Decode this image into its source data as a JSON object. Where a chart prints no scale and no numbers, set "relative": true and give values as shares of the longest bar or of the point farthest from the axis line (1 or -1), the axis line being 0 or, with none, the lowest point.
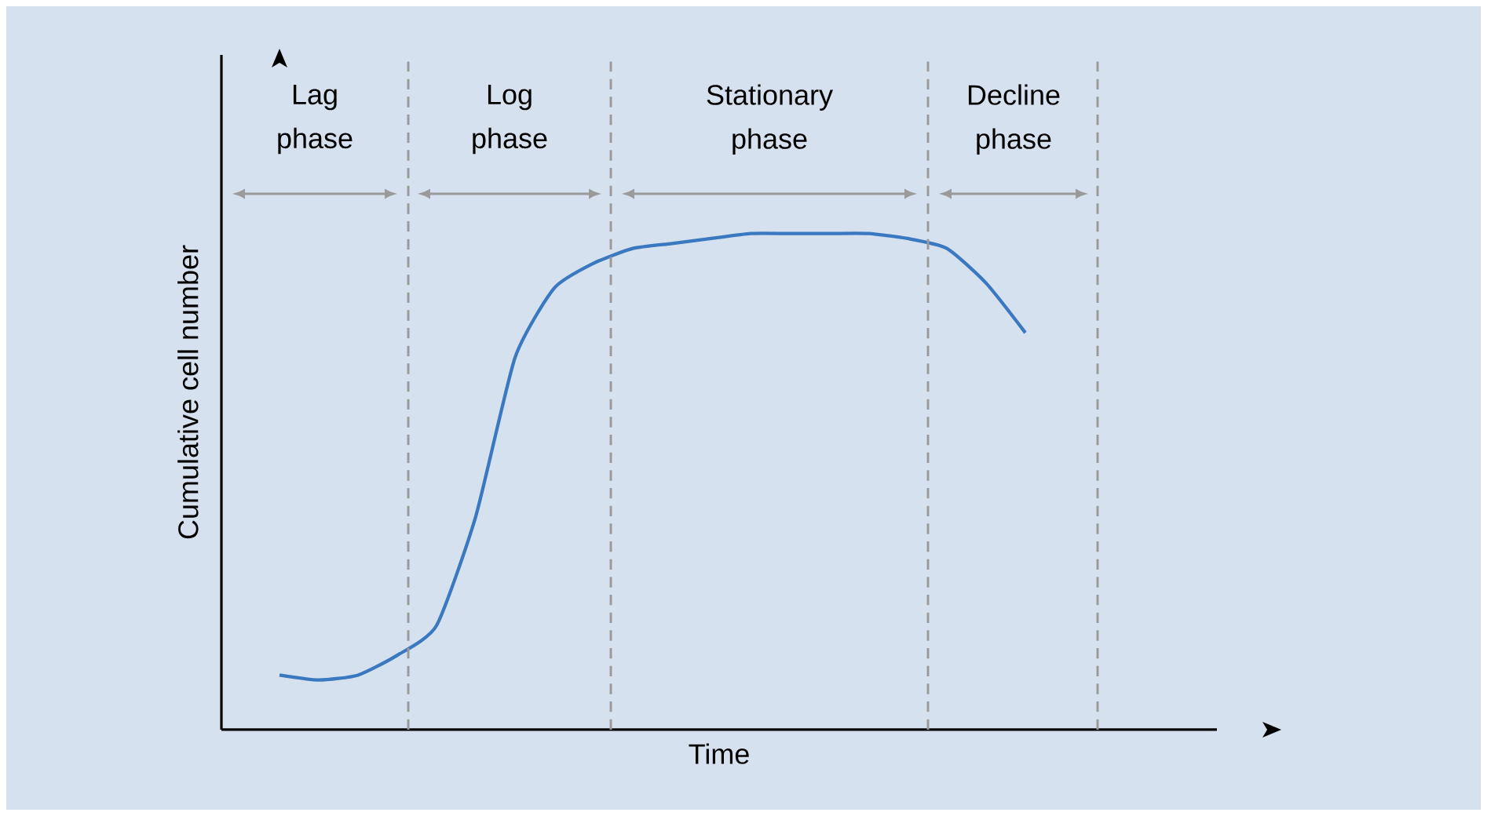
{
  "chart_data": {
    "type": "line",
    "relative": true,
    "xlabel": "Time",
    "ylabel": "Cumulative cell number",
    "categories": [
      null,
      null,
      null,
      null,
      null,
      null,
      null,
      null,
      null,
      null,
      null,
      null,
      null,
      null,
      null,
      null,
      null,
      null,
      null,
      null
    ],
    "series": [
      {
        "color": "#3a78c0",
        "values": [
          0.11,
          0.1,
          0.11,
          0.15,
          0.21,
          0.43,
          0.75,
          0.89,
          0.94,
          0.97,
          0.98,
          0.99,
          1.0,
          1.0,
          1.0,
          1.0,
          0.99,
          0.97,
          0.9,
          0.8
        ]
      }
    ],
    "annotations": [
      "Lag phase",
      "Log phase",
      "Stationary phase",
      "Decline phase"
    ]
  }
}
